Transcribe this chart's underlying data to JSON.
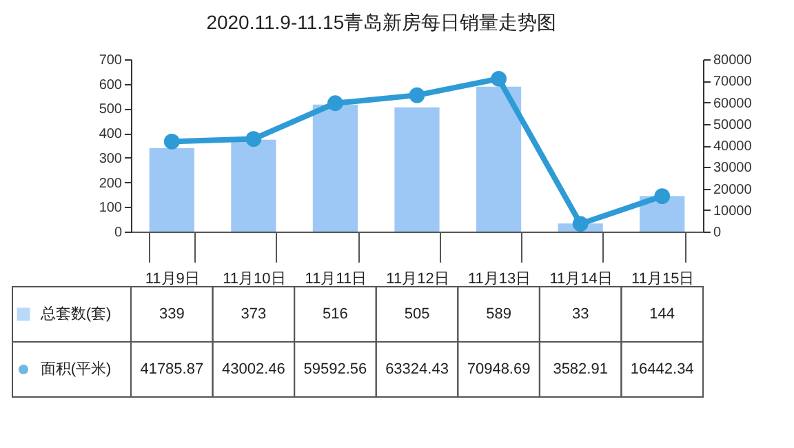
{
  "chart_data": {
    "type": "bar",
    "title": "2020.11.9-11.15青岛新房每日销量走势图",
    "categories": [
      "11月9日",
      "11月10日",
      "11月11日",
      "11月12日",
      "11月13日",
      "11月14日",
      "11月15日"
    ],
    "series": [
      {
        "name": "总套数(套)",
        "color": "#9dc8f5",
        "values": [
          339,
          373,
          516,
          505,
          589,
          33,
          144
        ]
      },
      {
        "name": "面积(平米)",
        "type": "line",
        "axis": "y2",
        "color": "#2e9bd6",
        "values": [
          41785.87,
          43002.46,
          59592.56,
          63324.43,
          70948.69,
          3582.91,
          16442.34
        ]
      }
    ],
    "ylim": [
      0,
      700
    ],
    "yticks": [
      0,
      100,
      200,
      300,
      400,
      500,
      600,
      700
    ],
    "y2lim": [
      0,
      80000
    ],
    "y2ticks": [
      0,
      10000,
      20000,
      30000,
      40000,
      50000,
      60000,
      70000,
      80000
    ],
    "data_labels": true,
    "legend": "bottom",
    "marker": "circle",
    "grid": false
  }
}
